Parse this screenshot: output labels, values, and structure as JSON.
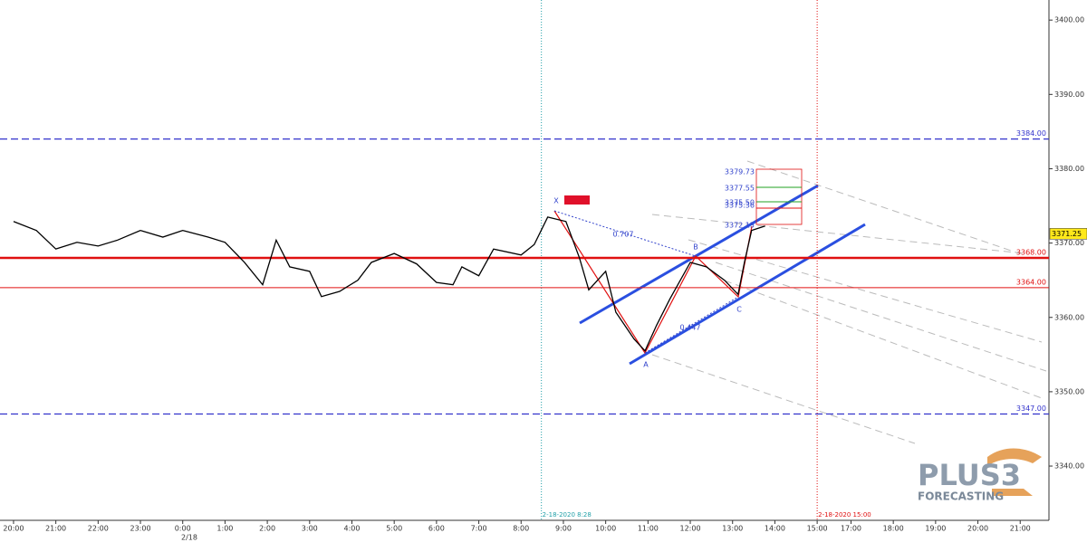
{
  "chart_data": {
    "type": "line",
    "x": [
      0,
      0.54,
      1,
      1.5,
      2,
      2.46,
      3,
      3.53,
      4,
      4.6,
      5,
      5.46,
      5.89,
      6.21,
      6.53,
      7,
      7.28,
      7.71,
      8.14,
      8.46,
      9,
      9.53,
      10,
      10.39,
      10.6,
      11,
      11.35,
      12,
      12.31,
      12.63,
      13.06,
      13.38,
      13.6,
      14,
      14.24,
      14.67,
      14.93,
      15.2,
      15.52,
      16,
      16.38,
      16.81,
      17.13,
      17.28,
      17.45,
      17.77
    ],
    "series": [
      {
        "color": "#000000",
        "values": [
          3372.9,
          3371.7,
          3369.2,
          3370.1,
          3369.6,
          3370.4,
          3371.7,
          3370.8,
          3371.7,
          3370.8,
          3370.1,
          3367.4,
          3364.4,
          3370.4,
          3366.8,
          3366.2,
          3362.8,
          3363.5,
          3365.0,
          3367.4,
          3368.6,
          3367.2,
          3364.7,
          3364.4,
          3366.8,
          3365.6,
          3369.2,
          3368.4,
          3369.8,
          3373.5,
          3372.9,
          3368.0,
          3363.7,
          3366.2,
          3360.7,
          3357.1,
          3355.5,
          3358.9,
          3362.5,
          3367.4,
          3366.8,
          3365.0,
          3363.1,
          3367.4,
          3371.7,
          3372.3
        ]
      }
    ],
    "xlim": [
      -0.32,
      24.48
    ],
    "ylim": [
      3332.7,
      3402.7
    ],
    "xticks": [
      {
        "value": 0,
        "label": "20:00"
      },
      {
        "value": 1,
        "label": "21:00"
      },
      {
        "value": 2,
        "label": "22:00"
      },
      {
        "value": 3,
        "label": "23:00"
      },
      {
        "value": 4,
        "label": "0:00"
      },
      {
        "value": 5,
        "label": "1:00"
      },
      {
        "value": 6,
        "label": "2:00"
      },
      {
        "value": 7,
        "label": "3:00"
      },
      {
        "value": 8,
        "label": "4:00"
      },
      {
        "value": 9,
        "label": "5:00"
      },
      {
        "value": 10,
        "label": "6:00"
      },
      {
        "value": 11,
        "label": "7:00"
      },
      {
        "value": 12,
        "label": "8:00"
      },
      {
        "value": 13,
        "label": "9:00"
      },
      {
        "value": 14,
        "label": "10:00"
      },
      {
        "value": 15,
        "label": "11:00"
      },
      {
        "value": 16,
        "label": "12:00"
      },
      {
        "value": 17,
        "label": "13:00"
      },
      {
        "value": 18,
        "label": "14:00"
      },
      {
        "value": 19,
        "label": "15:00"
      },
      {
        "value": 19.8,
        "label": "17:00"
      },
      {
        "value": 20.8,
        "label": "18:00"
      },
      {
        "value": 21.8,
        "label": "19:00"
      },
      {
        "value": 22.8,
        "label": "20:00"
      },
      {
        "value": 23.8,
        "label": "21:00"
      }
    ],
    "yticks": [
      {
        "value": 3340,
        "label": "3340.00"
      },
      {
        "value": 3350,
        "label": "3350.00"
      },
      {
        "value": 3360,
        "label": "3360.00"
      },
      {
        "value": 3370,
        "label": "3370.00"
      },
      {
        "value": 3380,
        "label": "3380.00"
      },
      {
        "value": 3390,
        "label": "3390.00"
      },
      {
        "value": 3400,
        "label": "3400.00"
      }
    ],
    "levels": [
      {
        "value": 3384,
        "label": "3384.00",
        "color": "#3333cc",
        "style": "dashed"
      },
      {
        "value": 3368,
        "label": "3368.00",
        "color": "#e01010",
        "style": "thick"
      },
      {
        "value": 3364,
        "label": "3364.00",
        "color": "#e01010",
        "style": "thin"
      },
      {
        "value": 3347,
        "label": "3347.00",
        "color": "#3333cc",
        "style": "dashed"
      }
    ],
    "last_price": {
      "value": 3371.25,
      "label": "3371.25"
    },
    "markers": [
      {
        "x": 12.48,
        "label": "2-18-2020 8:28",
        "color": "#22a0a8"
      },
      {
        "x": 19,
        "label": "2-18-2020 15:00",
        "color": "#e01010"
      }
    ],
    "date_label": "2/18",
    "annotations": {
      "x_point": "X",
      "a_point": "A",
      "b_point": "B",
      "c_point": "C",
      "ratio_xb": "0.707",
      "ratio_ac": "0.447"
    },
    "fib_labels": [
      "3379.73",
      "3377.55",
      "3375.50",
      "3375.36",
      "3372.15"
    ],
    "logo": {
      "name": "PLUS3",
      "tagline": "FORECASTING"
    }
  }
}
